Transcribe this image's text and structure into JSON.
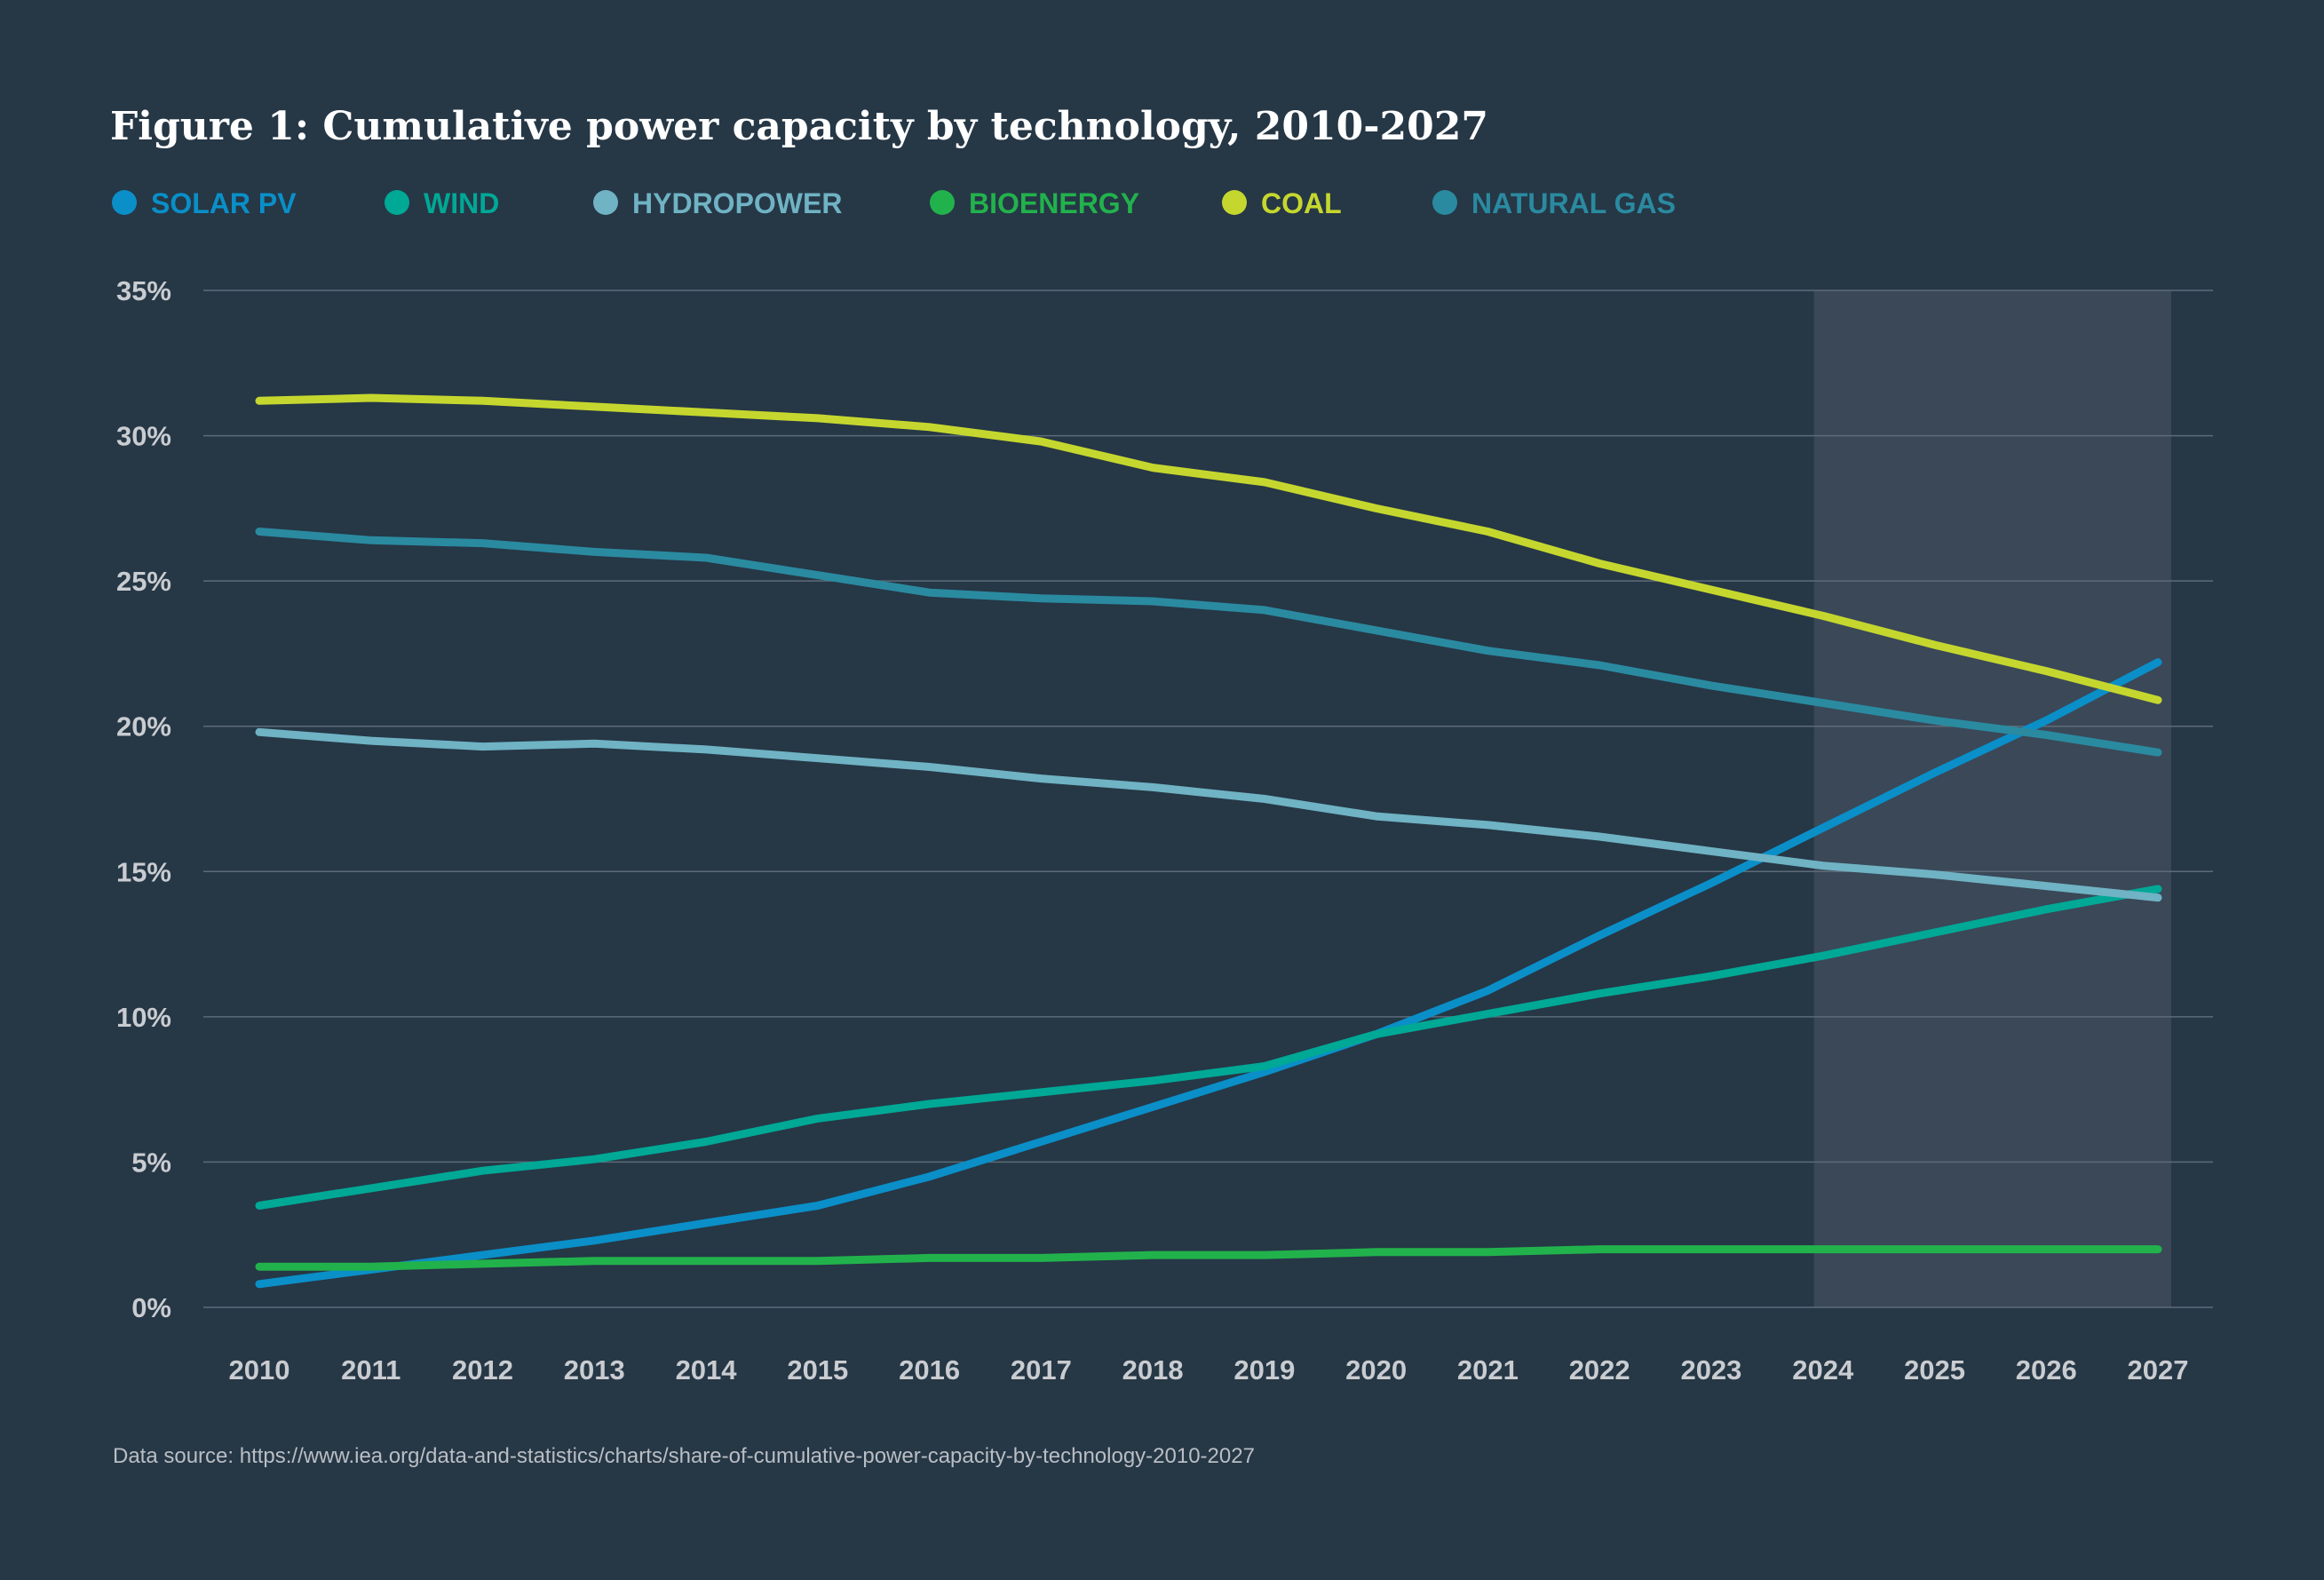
{
  "chart_data": {
    "type": "line",
    "title": "Figure 1: Cumulative power capacity by technology, 2010-2027",
    "source": "Data source: https://www.iea.org/data-and-statistics/charts/share-of-cumulative-power-capacity-by-technology-2010-2027",
    "x": [
      2010,
      2011,
      2012,
      2013,
      2014,
      2015,
      2016,
      2017,
      2018,
      2019,
      2020,
      2021,
      2022,
      2023,
      2024,
      2025,
      2026,
      2027
    ],
    "x_tick_labels": [
      "2010",
      "2011",
      "2012",
      "2013",
      "2014",
      "2015",
      "2016",
      "2017",
      "2018",
      "2019",
      "2020",
      "2021",
      "2022",
      "2023",
      "2024",
      "2025",
      "2026",
      "2027"
    ],
    "y_tick_labels": [
      "0%",
      "5%",
      "10%",
      "15%",
      "20%",
      "25%",
      "30%",
      "35%"
    ],
    "y_ticks": [
      0,
      5,
      10,
      15,
      20,
      25,
      30,
      35
    ],
    "ylim": [
      0,
      35
    ],
    "y_unit": "%",
    "grid": "horizontal",
    "legend_position": "top-left",
    "forecast_shading": {
      "from": 2024,
      "to": 2027,
      "color": "#3a4858"
    },
    "series": [
      {
        "name": "SOLAR PV",
        "color": "#0a8fc8",
        "values": [
          0.8,
          1.3,
          1.8,
          2.3,
          2.9,
          3.5,
          4.5,
          5.7,
          6.9,
          8.1,
          9.4,
          10.9,
          12.8,
          14.6,
          16.5,
          18.4,
          20.2,
          22.2
        ]
      },
      {
        "name": "WIND",
        "color": "#00a896",
        "values": [
          3.5,
          4.1,
          4.7,
          5.1,
          5.7,
          6.5,
          7.0,
          7.4,
          7.8,
          8.3,
          9.4,
          10.1,
          10.8,
          11.4,
          12.1,
          12.9,
          13.7,
          14.4
        ]
      },
      {
        "name": "HYDROPOWER",
        "color": "#6fb3c4",
        "values": [
          19.8,
          19.5,
          19.3,
          19.4,
          19.2,
          18.9,
          18.6,
          18.2,
          17.9,
          17.5,
          16.9,
          16.6,
          16.2,
          15.7,
          15.2,
          14.9,
          14.5,
          14.1
        ]
      },
      {
        "name": "BIOENERGY",
        "color": "#22b24c",
        "values": [
          1.4,
          1.4,
          1.5,
          1.6,
          1.6,
          1.6,
          1.7,
          1.7,
          1.8,
          1.8,
          1.9,
          1.9,
          2.0,
          2.0,
          2.0,
          2.0,
          2.0,
          2.0
        ]
      },
      {
        "name": "COAL",
        "color": "#c5d72e",
        "values": [
          31.2,
          31.3,
          31.2,
          31.0,
          30.8,
          30.6,
          30.3,
          29.8,
          28.9,
          28.4,
          27.5,
          26.7,
          25.6,
          24.7,
          23.8,
          22.8,
          21.9,
          20.9
        ]
      },
      {
        "name": "NATURAL GAS",
        "color": "#2a8aa0",
        "values": [
          26.7,
          26.4,
          26.3,
          26.0,
          25.8,
          25.2,
          24.6,
          24.4,
          24.3,
          24.0,
          23.3,
          22.6,
          22.1,
          21.4,
          20.8,
          20.2,
          19.7,
          19.1
        ]
      }
    ]
  }
}
